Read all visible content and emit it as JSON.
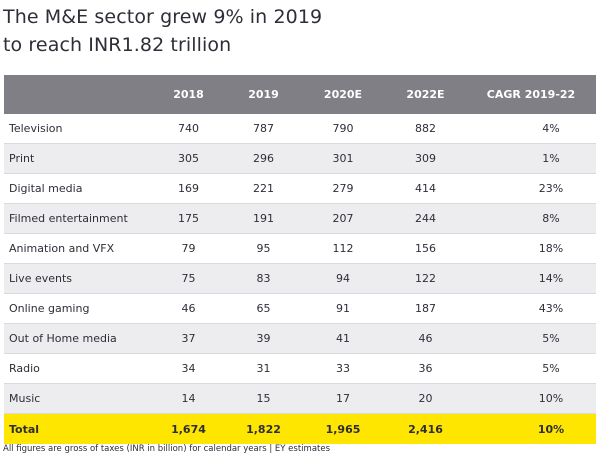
{
  "title": {
    "line1": "The M&E sector grew 9% in 2019",
    "line2": "to reach INR1.82 trillion"
  },
  "table": {
    "headers": [
      "",
      "2018",
      "2019",
      "2020E",
      "2022E",
      "CAGR 2019-22"
    ],
    "rows": [
      {
        "name": "Television",
        "v2018": "740",
        "v2019": "787",
        "v2020e": "790",
        "v2022e": "882",
        "cagr": "4%"
      },
      {
        "name": "Print",
        "v2018": "305",
        "v2019": "296",
        "v2020e": "301",
        "v2022e": "309",
        "cagr": "1%"
      },
      {
        "name": "Digital media",
        "v2018": "169",
        "v2019": "221",
        "v2020e": "279",
        "v2022e": "414",
        "cagr": "23%"
      },
      {
        "name": "Filmed entertainment",
        "v2018": "175",
        "v2019": "191",
        "v2020e": "207",
        "v2022e": "244",
        "cagr": "8%"
      },
      {
        "name": "Animation and VFX",
        "v2018": "79",
        "v2019": "95",
        "v2020e": "112",
        "v2022e": "156",
        "cagr": "18%"
      },
      {
        "name": "Live events",
        "v2018": "75",
        "v2019": "83",
        "v2020e": "94",
        "v2022e": "122",
        "cagr": "14%"
      },
      {
        "name": "Online gaming",
        "v2018": "46",
        "v2019": "65",
        "v2020e": "91",
        "v2022e": "187",
        "cagr": "43%"
      },
      {
        "name": "Out of Home media",
        "v2018": "37",
        "v2019": "39",
        "v2020e": "41",
        "v2022e": "46",
        "cagr": "5%"
      },
      {
        "name": "Radio",
        "v2018": "34",
        "v2019": "31",
        "v2020e": "33",
        "v2022e": "36",
        "cagr": "5%"
      },
      {
        "name": "Music",
        "v2018": "14",
        "v2019": "15",
        "v2020e": "17",
        "v2022e": "20",
        "cagr": "10%"
      }
    ],
    "total": {
      "name": "Total",
      "v2018": "1,674",
      "v2019": "1,822",
      "v2020e": "1,965",
      "v2022e": "2,416",
      "cagr": "10%"
    }
  },
  "footnote": "All figures are gross of taxes (INR in billion) for calendar years | EY estimates",
  "colors": {
    "header_bg": "#7f7f85",
    "stripe_bg": "#ededf0",
    "total_bg": "#ffe600",
    "text": "#2e2e38"
  }
}
